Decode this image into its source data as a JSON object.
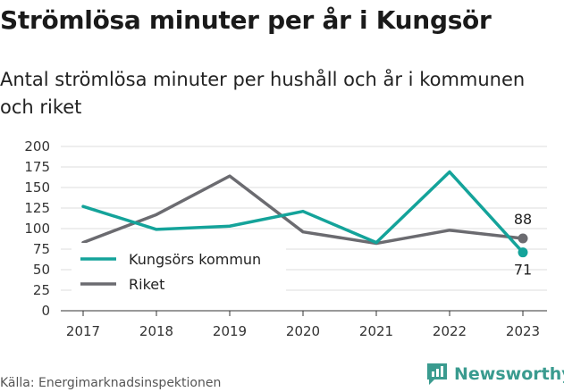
{
  "header": {
    "title": "Strömlösa minuter per år i Kungsör",
    "subtitle": "Antal strömlösa minuter per hushåll och år i kommunen och riket"
  },
  "footer": {
    "source": "Källa: Energimarknadsinspektionen",
    "brand": "Newsworthy"
  },
  "colors": {
    "kommun": "#14a39a",
    "riket": "#6b6b70",
    "brand": "#3a9b8f"
  },
  "chart_data": {
    "type": "line",
    "title": "Strömlösa minuter per år i Kungsör",
    "subtitle": "Antal strömlösa minuter per hushåll och år i kommunen och riket",
    "x": [
      "2017",
      "2018",
      "2019",
      "2020",
      "2021",
      "2022",
      "2023"
    ],
    "series": [
      {
        "name": "Kungsörs kommun",
        "values": [
          127,
          99,
          103,
          121,
          83,
          169,
          71
        ]
      },
      {
        "name": "Riket",
        "values": [
          83,
          117,
          164,
          96,
          82,
          98,
          88
        ]
      }
    ],
    "yticks": [
      "0",
      "25",
      "50",
      "75",
      "100",
      "125",
      "150",
      "175",
      "200"
    ],
    "ylim": [
      0,
      200
    ],
    "grid": true,
    "legend": "bottom-left",
    "end_labels": {
      "kommun": "71",
      "riket": "88"
    }
  }
}
